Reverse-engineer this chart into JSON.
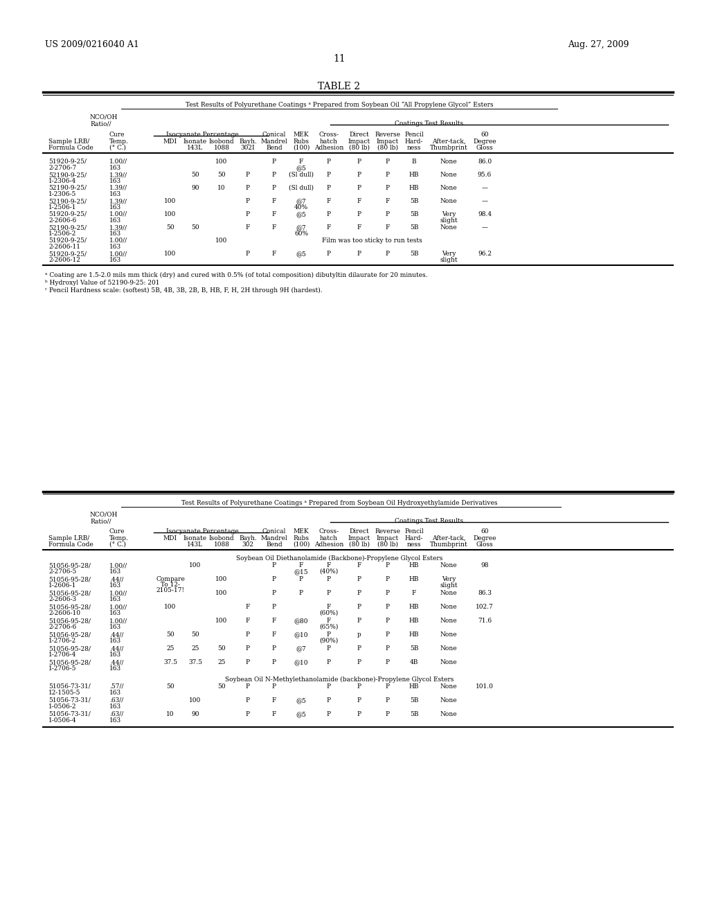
{
  "title_left": "US 2009/0216040 A1",
  "title_right": "Aug. 27, 2009",
  "page_number": "11",
  "table1_title": "TABLE 2",
  "table1_subtitle": "Test Results of Polyurethane Coatings ᵃ Prepared from Soybean Oil “All Propylene Glycol” Esters",
  "table2_subtitle": "Test Results of Polyurethane Coatings ᵃ Prepared from Soybean Oil Hydroxyethylamide Derivatives",
  "footnotes1": [
    "ᵃ Coating are 1.5-2.0 mils mm thick (dry) and cured with 0.5% (of total composition) dibutyltin dilaurate for 20 minutes.",
    "ᵇ Hydroxyl Value of 52190-9-25: 201",
    "ᶜ Pencil Hardness scale: (softest) 5B, 4B, 3B, 2B, B, HB, F, H, 2H through 9H (hardest)."
  ],
  "background_color": "#ffffff",
  "text_color": "#000000",
  "font_size_sm": 6.5,
  "font_size_hdr": 9.0,
  "font_size_pg": 10.0
}
